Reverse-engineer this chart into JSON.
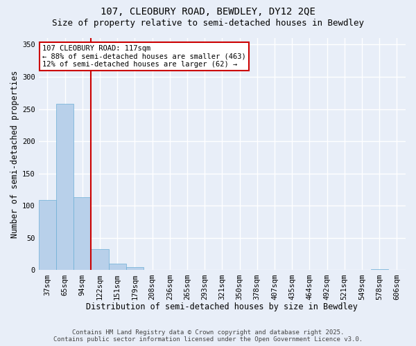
{
  "title1": "107, CLEOBURY ROAD, BEWDLEY, DY12 2QE",
  "title2": "Size of property relative to semi-detached houses in Bewdley",
  "xlabel": "Distribution of semi-detached houses by size in Bewdley",
  "ylabel": "Number of semi-detached properties",
  "categories": [
    "37sqm",
    "65sqm",
    "94sqm",
    "122sqm",
    "151sqm",
    "179sqm",
    "208sqm",
    "236sqm",
    "265sqm",
    "293sqm",
    "321sqm",
    "350sqm",
    "378sqm",
    "407sqm",
    "435sqm",
    "464sqm",
    "492sqm",
    "521sqm",
    "549sqm",
    "578sqm",
    "606sqm"
  ],
  "values": [
    109,
    258,
    113,
    33,
    10,
    5,
    0,
    0,
    0,
    0,
    0,
    0,
    0,
    0,
    0,
    0,
    0,
    0,
    0,
    2,
    0
  ],
  "bar_color": "#b8d0ea",
  "bar_edge_color": "#6baed6",
  "vline_x": 2.5,
  "vline_color": "#cc0000",
  "annotation_text": "107 CLEOBURY ROAD: 117sqm\n← 88% of semi-detached houses are smaller (463)\n12% of semi-detached houses are larger (62) →",
  "annotation_box_color": "#ffffff",
  "annotation_box_edge": "#cc0000",
  "ylim": [
    0,
    360
  ],
  "yticks": [
    0,
    50,
    100,
    150,
    200,
    250,
    300,
    350
  ],
  "footnote1": "Contains HM Land Registry data © Crown copyright and database right 2025.",
  "footnote2": "Contains public sector information licensed under the Open Government Licence v3.0.",
  "background_color": "#e8eef8",
  "grid_color": "#ffffff",
  "title_fontsize": 10,
  "subtitle_fontsize": 9,
  "axis_label_fontsize": 8.5,
  "tick_fontsize": 7.5,
  "footnote_fontsize": 6.5
}
